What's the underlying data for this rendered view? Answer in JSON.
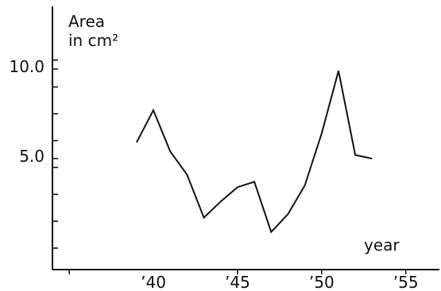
{
  "chart_data": {
    "type": "line",
    "ylabel_line1": "Area",
    "ylabel_line2": "in cm²",
    "xlabel": "year",
    "x": [
      1939,
      1940,
      1941,
      1942,
      1943,
      1944,
      1945,
      1946,
      1947,
      1948,
      1949,
      1950,
      1951,
      1952,
      1953
    ],
    "series": [
      {
        "values": [
          5.9,
          7.7,
          5.4,
          4.1,
          1.7,
          2.6,
          3.4,
          3.7,
          0.9,
          1.9,
          3.5,
          6.4,
          9.9,
          5.2,
          5.0
        ]
      }
    ],
    "xlim": [
      1934,
      1957
    ],
    "ylim": [
      -1.2,
      13.5
    ],
    "x_ticks": [
      {
        "value": 1940,
        "label": "’40"
      },
      {
        "value": 1945,
        "label": "’45"
      },
      {
        "value": 1950,
        "label": "’50"
      },
      {
        "value": 1955,
        "label": "’55"
      }
    ],
    "x_minor_ticks": [
      1935,
      1945,
      1950,
      1955
    ],
    "y_ticks": [
      {
        "value": 10.0,
        "label": "10.0"
      },
      {
        "value": 5.0,
        "label": "5.0"
      }
    ],
    "y_minor_ticks": [
      0,
      1.5,
      3.0,
      4.5,
      6.0,
      7.5,
      9.0,
      10.5
    ],
    "grid": false,
    "colors": {
      "line": "#111111",
      "axis": "#111111"
    }
  }
}
